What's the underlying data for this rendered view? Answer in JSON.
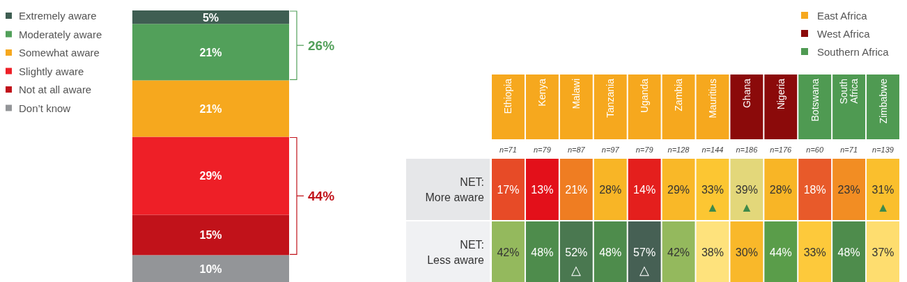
{
  "chart_data": [
    {
      "type": "bar",
      "stacked": true,
      "categories": [
        null
      ],
      "legend": "top left",
      "series": [
        {
          "name": "Don’t know",
          "color": "#939598",
          "values": [
            10
          ],
          "value_labels": [
            "10%"
          ]
        },
        {
          "name": "Not at all aware",
          "color": "#c1121a",
          "values": [
            15
          ],
          "value_labels": [
            "15%"
          ]
        },
        {
          "name": "Slightly aware",
          "color": "#ee1f27",
          "values": [
            29
          ],
          "value_labels": [
            "29%"
          ]
        },
        {
          "name": "Somewhat aware",
          "color": "#f6a81e",
          "values": [
            21
          ],
          "value_labels": [
            "21%"
          ]
        },
        {
          "name": "Moderately aware",
          "color": "#52a05a",
          "values": [
            21
          ],
          "value_labels": [
            "21%"
          ]
        },
        {
          "name": "Extremely aware",
          "color": "#3f5e52",
          "values": [
            5
          ],
          "value_labels": [
            "5%"
          ]
        }
      ],
      "annotations": [
        "26%",
        "44%"
      ]
    },
    {
      "type": "heatmap",
      "categories": [
        "Ethiopia",
        "Kenya",
        "Malawi",
        "Tanzania",
        "Uganda",
        "Zambia",
        "Mauritius",
        "Ghana",
        "Nigeria",
        "Botswana",
        "South Africa",
        "Zimbabwe"
      ],
      "colors": [
        "#f6a81e",
        "#f6a81e",
        "#f6a81e",
        "#f6a81e",
        "#f6a81e",
        "#f6a81e",
        "#f6a81e",
        "#8b0a0a",
        "#8b0a0a",
        "#4f9a52",
        "#4f9a52",
        "#4f9a52"
      ],
      "y_categories": [
        "NET: More aware",
        "NET: Less aware"
      ],
      "cells": [
        [
          17,
          13,
          21,
          28,
          14,
          29,
          33,
          39,
          28,
          18,
          23,
          31
        ],
        [
          42,
          48,
          52,
          48,
          57,
          42,
          38,
          30,
          44,
          33,
          48,
          37
        ]
      ],
      "cell_labels": [
        [
          "17%",
          "13%",
          "21%",
          "28%",
          "14%",
          "29%",
          "33%\n▲",
          "39%\n▲",
          "28%",
          "18%",
          "23%",
          "31%\n▲"
        ],
        [
          "42%",
          "48%",
          "52%\n△",
          "48%",
          "57%\n△",
          "42%",
          "38%",
          "30%",
          "44%",
          "33%",
          "48%",
          "37%"
        ]
      ],
      "annotations": [
        "n=71",
        "n=79",
        "n=87",
        "n=97",
        "n=79",
        "n=128",
        "n=144",
        "n=186",
        "n=176",
        "n=60",
        "n=71",
        "n=139",
        "East Africa",
        "West Africa",
        "Southern Africa"
      ]
    }
  ]
}
